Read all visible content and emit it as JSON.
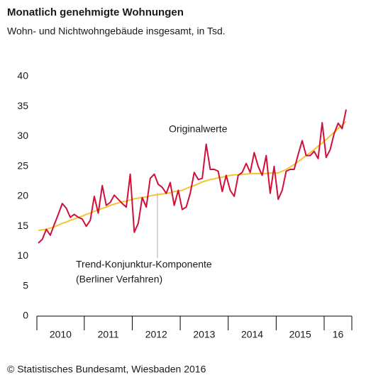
{
  "chart_data": {
    "type": "line",
    "title": "Monatlich genehmigte Wohnungen",
    "subtitle": "Wohn- und Nichtwohngebäude insgesamt, in Tsd.",
    "source": "© Statistisches Bundesamt, Wiesbaden 2016",
    "annotations": [
      "Originalwerte",
      "Trend-Konjunktur-Komponente",
      "(Berliner Verfahren)"
    ],
    "categories": [
      null,
      null,
      null,
      null,
      null,
      null,
      null,
      null,
      null,
      null,
      null,
      null,
      null,
      null,
      null,
      null,
      null,
      null,
      null,
      null,
      null,
      null,
      null,
      null,
      null,
      null,
      null,
      null,
      null,
      null,
      null,
      null,
      null,
      null,
      null,
      null,
      null,
      null,
      null,
      null,
      null,
      null,
      null,
      null,
      null,
      null,
      null,
      null,
      null,
      null,
      null,
      null,
      null,
      null,
      null,
      null,
      null,
      null,
      null,
      null,
      null,
      null,
      null,
      null,
      null,
      null,
      null,
      null,
      null,
      null,
      null,
      null,
      null,
      null,
      null,
      null,
      null,
      null
    ],
    "x_labels": [
      "2010",
      "2011",
      "2012",
      "2013",
      "2014",
      "2015",
      "16"
    ],
    "series": [
      {
        "name": "Originalwerte",
        "color": "#d0103a",
        "values": [
          12.2,
          12.8,
          14.5,
          13.5,
          15.3,
          17.0,
          18.8,
          18.0,
          16.5,
          17.0,
          16.5,
          16.2,
          15.0,
          16.0,
          20.0,
          17.2,
          21.8,
          18.5,
          19.0,
          20.2,
          19.5,
          18.8,
          18.2,
          23.7,
          14.0,
          15.5,
          19.8,
          18.2,
          23.0,
          23.7,
          22.0,
          21.5,
          20.5,
          22.3,
          18.5,
          21.0,
          17.8,
          18.2,
          20.5,
          24.0,
          22.8,
          23.0,
          28.7,
          24.5,
          24.5,
          24.2,
          20.8,
          23.5,
          21.0,
          20.0,
          23.5,
          24.0,
          25.5,
          24.0,
          27.3,
          25.0,
          23.5,
          26.8,
          20.5,
          25.0,
          19.5,
          21.0,
          24.2,
          24.5,
          24.5,
          27.0,
          29.3,
          26.8,
          26.8,
          27.5,
          26.3,
          32.3,
          26.5,
          27.8,
          30.5,
          32.2,
          31.3,
          34.5
        ]
      },
      {
        "name": "Trend-Konjunktur-Komponente",
        "color": "#f5c431",
        "values": [
          14.3,
          14.4,
          14.5,
          14.7,
          14.9,
          15.2,
          15.5,
          15.7,
          16.0,
          16.2,
          16.5,
          16.7,
          17.0,
          17.2,
          17.5,
          17.7,
          18.0,
          18.2,
          18.5,
          18.7,
          18.9,
          19.1,
          19.2,
          19.4,
          19.6,
          19.7,
          19.8,
          19.9,
          20.1,
          20.2,
          20.3,
          20.4,
          20.5,
          20.6,
          20.8,
          20.9,
          21.0,
          21.3,
          21.6,
          21.8,
          22.1,
          22.4,
          22.6,
          22.8,
          22.9,
          23.1,
          23.2,
          23.4,
          23.5,
          23.6,
          23.6,
          23.7,
          23.7,
          23.8,
          23.8,
          23.8,
          23.8,
          23.8,
          23.9,
          23.9,
          23.9,
          24.2,
          24.5,
          24.9,
          25.3,
          25.8,
          26.3,
          26.8,
          27.3,
          27.8,
          28.4,
          28.9,
          29.5,
          30.1,
          30.7,
          31.3,
          31.9,
          32.5
        ]
      }
    ],
    "ylim": [
      0,
      40
    ],
    "yticks": [
      0,
      5,
      10,
      15,
      20,
      25,
      30,
      35,
      40
    ],
    "grid": false
  }
}
